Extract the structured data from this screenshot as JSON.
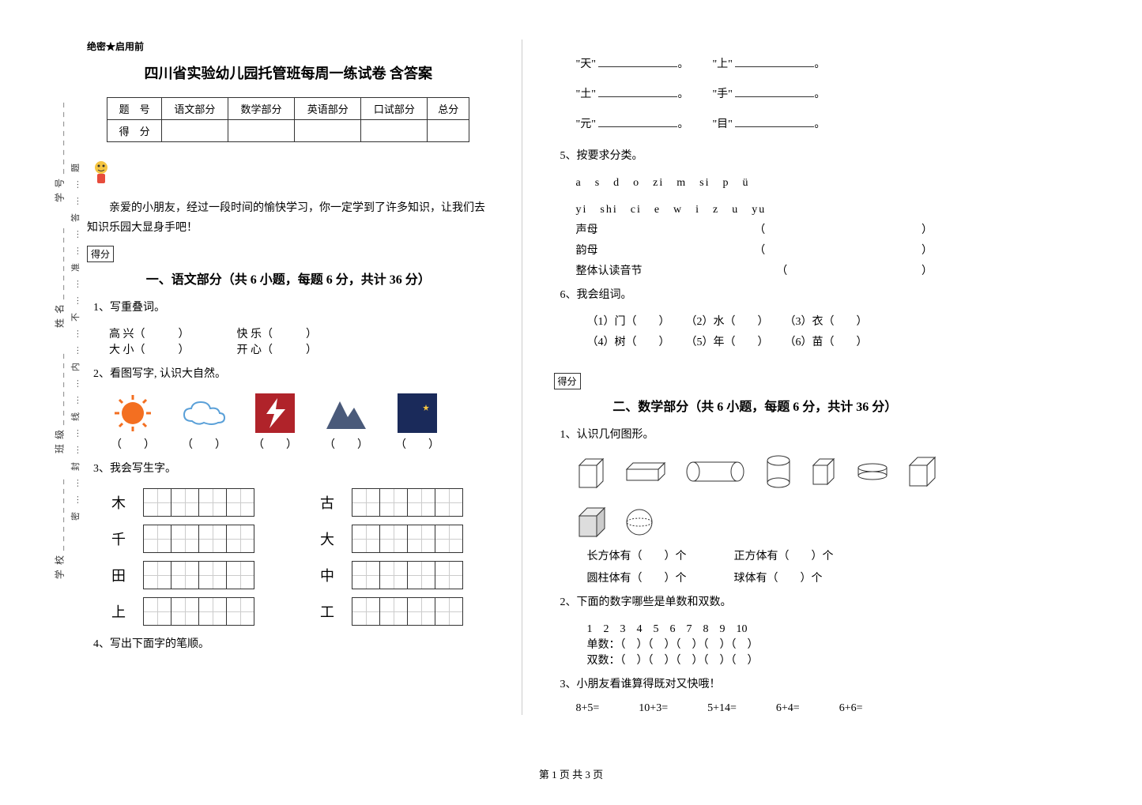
{
  "binding": {
    "labels": [
      "学校",
      "班级",
      "姓名",
      "学号"
    ],
    "dotted": "密……封……线……内……不……准……答……题"
  },
  "header": {
    "secret": "绝密★启用前",
    "title": "四川省实验幼儿园托管班每周一练试卷 含答案"
  },
  "score_table": {
    "row1": [
      "题　号",
      "语文部分",
      "数学部分",
      "英语部分",
      "口试部分",
      "总分"
    ],
    "row2": [
      "得　分",
      "",
      "",
      "",
      "",
      ""
    ]
  },
  "intro": "亲爱的小朋友，经过一段时间的愉快学习，你一定学到了许多知识，让我们去知识乐园大显身手吧！",
  "scorebox_label": "得分",
  "section1": {
    "title": "一、语文部分（共 6 小题，每题 6 分，共计 36 分）",
    "q1": {
      "stem": "1、写重叠词。",
      "items": [
        "高 兴（　　　）",
        "快 乐（　　　）",
        "大 小（　　　）",
        "开 心（　　　）"
      ]
    },
    "q2": {
      "stem": "2、看图写字, 认识大自然。",
      "blank": "（　　）"
    },
    "q3": {
      "stem": "3、我会写生字。",
      "chars_left": [
        "木",
        "千",
        "田",
        "上"
      ],
      "chars_right": [
        "古",
        "大",
        "中",
        "工"
      ]
    },
    "q4": {
      "stem": "4、写出下面字的笔顺。",
      "lines": [
        [
          "\"天\"",
          "\"上\""
        ],
        [
          "\"土\"",
          "\"手\""
        ],
        [
          "\"元\"",
          "\"目\""
        ]
      ]
    },
    "q5": {
      "stem": "5、按要求分类。",
      "row1": "a　s　d　o　zi　m　si　p　ü",
      "row2": "yi　shi　ci　e　w　i　z　u　yu",
      "cats": [
        "声母",
        "韵母",
        "整体认读音节"
      ]
    },
    "q6": {
      "stem": "6、我会组词。",
      "items": [
        "（1）门（　　）",
        "（2）水（　　）",
        "（3）衣（　　）",
        "（4）树（　　）",
        "（5）年（　　）",
        "（6）苗（　　）"
      ]
    }
  },
  "section2": {
    "title": "二、数学部分（共 6 小题，每题 6 分，共计 36 分）",
    "q1": {
      "stem": "1、认识几何图形。",
      "labels": [
        "长方体有（　　）个",
        "正方体有（　　）个",
        "圆柱体有（　　）个",
        "球体有（　　）个"
      ]
    },
    "q2": {
      "stem": "2、下面的数字哪些是单数和双数。",
      "nums": "1　2　3　4　5　6　7　8　9　10",
      "odd": "单数：（　）（　）（　）（　）（　）",
      "even": "双数：（　）（　）（　）（　）（　）"
    },
    "q3": {
      "stem": "3、小朋友看谁算得既对又快哦！",
      "items": [
        "8+5=",
        "10+3=",
        "5+14=",
        "6+4=",
        "6+6="
      ]
    }
  },
  "footer": "第 1 页 共 3 页",
  "colors": {
    "sun": "#f36f21",
    "cloud": "#5aa0d8",
    "lightning": "#b0232a",
    "mountain": "#4a5a7a",
    "moon_bg": "#1a2a5a",
    "moon": "#f5c542",
    "shape_stroke": "#333"
  }
}
